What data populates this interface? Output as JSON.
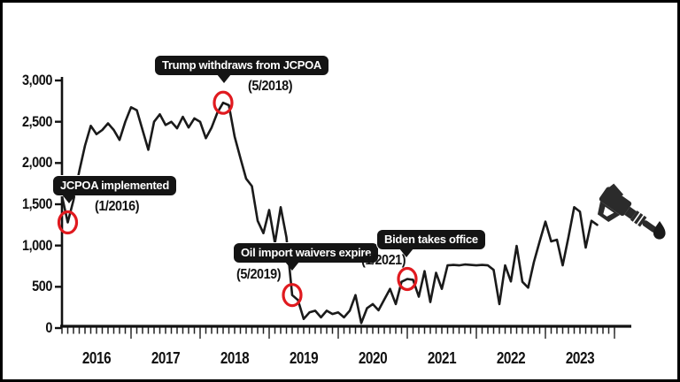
{
  "figure": {
    "background": "#ffffff",
    "border_color": "#000000"
  },
  "chart_data": {
    "type": "line",
    "x_start": "2016-01",
    "x_end": "2023-10",
    "x_tick_years": [
      "2016",
      "2017",
      "2018",
      "2019",
      "2020",
      "2021",
      "2022",
      "2023"
    ],
    "y_ticks": [
      "0",
      "500",
      "1,000",
      "1,500",
      "2,000",
      "2,500",
      "3,000"
    ],
    "ylim": [
      0,
      3000
    ],
    "grid": false,
    "legend": "none",
    "line_color": "#1a1a1a",
    "marker_color": "#e01a1f",
    "series": [
      {
        "name": "monthly-values",
        "monthly_values": [
          1600,
          1280,
          1550,
          1900,
          2210,
          2450,
          2350,
          2400,
          2480,
          2400,
          2280,
          2500,
          2675,
          2640,
          2400,
          2160,
          2500,
          2590,
          2460,
          2500,
          2420,
          2560,
          2430,
          2540,
          2500,
          2300,
          2430,
          2610,
          2730,
          2700,
          2320,
          2060,
          1810,
          1720,
          1300,
          1150,
          1430,
          1030,
          1465,
          1100,
          400,
          340,
          110,
          190,
          210,
          130,
          210,
          170,
          190,
          130,
          210,
          400,
          60,
          240,
          290,
          215,
          345,
          475,
          290,
          560,
          595,
          585,
          380,
          690,
          315,
          670,
          475,
          760,
          765,
          760,
          770,
          765,
          760,
          765,
          760,
          705,
          290,
          760,
          565,
          995,
          560,
          490,
          800,
          1050,
          1290,
          1050,
          1070,
          760,
          1100,
          1465,
          1410,
          975,
          1300,
          1250
        ]
      }
    ],
    "annotations": [
      {
        "label": "JCPOA implemented",
        "date": "(1/2016)",
        "month": "2016-01",
        "month_index": 1
      },
      {
        "label": "Trump withdraws from JCPOA",
        "date": "(5/2018)",
        "month": "2018-05",
        "month_index": 28
      },
      {
        "label": "Oil import waivers expire",
        "date": "(5/2019)",
        "month": "2019-05",
        "month_index": 40
      },
      {
        "label": "Biden takes office",
        "date": "(1/2021)",
        "month": "2021-01",
        "month_index": 60
      }
    ],
    "icons": [
      {
        "name": "fuel-nozzle-icon",
        "color": "#2b2b2b"
      },
      {
        "name": "oil-drop-icon",
        "color": "#1a1a1a"
      }
    ]
  }
}
